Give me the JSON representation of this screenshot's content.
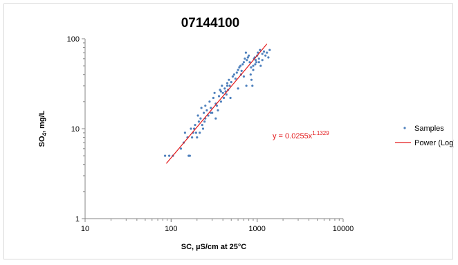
{
  "chart_data": {
    "type": "scatter",
    "title": "07144100",
    "xlabel": "SC, µS/cm at 25°C",
    "ylabel_main": "SO",
    "ylabel_sub": "4",
    "ylabel_tail": ", mg/L",
    "x_scale": "log",
    "y_scale": "log",
    "xlim": [
      10,
      10000
    ],
    "ylim": [
      1,
      100
    ],
    "x_ticks": [
      "10",
      "100",
      "1000",
      "10000"
    ],
    "y_ticks": [
      "1",
      "10",
      "100"
    ],
    "grid": false,
    "legend_position": "right",
    "colors": {
      "samples": "#4f81bd",
      "trend": "#e31a1c"
    },
    "series": [
      {
        "name": "Samples",
        "kind": "scatter",
        "points": [
          [
            85,
            5
          ],
          [
            95,
            5
          ],
          [
            105,
            5
          ],
          [
            130,
            6
          ],
          [
            140,
            7
          ],
          [
            145,
            9
          ],
          [
            155,
            8
          ],
          [
            160,
            5
          ],
          [
            165,
            5
          ],
          [
            170,
            10
          ],
          [
            175,
            8
          ],
          [
            180,
            9
          ],
          [
            185,
            10
          ],
          [
            190,
            11
          ],
          [
            195,
            9
          ],
          [
            200,
            8
          ],
          [
            205,
            14
          ],
          [
            210,
            12
          ],
          [
            215,
            9
          ],
          [
            220,
            13
          ],
          [
            225,
            17
          ],
          [
            230,
            11
          ],
          [
            235,
            10
          ],
          [
            240,
            15
          ],
          [
            245,
            12
          ],
          [
            250,
            18
          ],
          [
            260,
            16
          ],
          [
            270,
            14
          ],
          [
            280,
            20
          ],
          [
            290,
            17
          ],
          [
            300,
            15
          ],
          [
            310,
            22
          ],
          [
            320,
            25
          ],
          [
            330,
            13
          ],
          [
            340,
            18
          ],
          [
            350,
            16
          ],
          [
            360,
            23
          ],
          [
            370,
            27
          ],
          [
            380,
            20
          ],
          [
            390,
            30
          ],
          [
            400,
            25
          ],
          [
            410,
            22
          ],
          [
            420,
            28
          ],
          [
            430,
            26
          ],
          [
            440,
            24
          ],
          [
            450,
            32
          ],
          [
            460,
            27
          ],
          [
            470,
            35
          ],
          [
            480,
            30
          ],
          [
            490,
            22
          ],
          [
            500,
            33
          ],
          [
            520,
            38
          ],
          [
            540,
            40
          ],
          [
            560,
            36
          ],
          [
            580,
            42
          ],
          [
            600,
            45
          ],
          [
            620,
            48
          ],
          [
            640,
            50
          ],
          [
            660,
            44
          ],
          [
            680,
            52
          ],
          [
            700,
            55
          ],
          [
            720,
            60
          ],
          [
            740,
            70
          ],
          [
            760,
            58
          ],
          [
            780,
            62
          ],
          [
            800,
            65
          ],
          [
            820,
            55
          ],
          [
            840,
            40
          ],
          [
            860,
            35
          ],
          [
            880,
            30
          ],
          [
            900,
            50
          ],
          [
            920,
            60
          ],
          [
            940,
            62
          ],
          [
            960,
            58
          ],
          [
            980,
            55
          ],
          [
            1000,
            65
          ],
          [
            1020,
            70
          ],
          [
            1050,
            60
          ],
          [
            1080,
            75
          ],
          [
            1100,
            50
          ],
          [
            1150,
            68
          ],
          [
            1200,
            72
          ],
          [
            1250,
            65
          ],
          [
            1300,
            70
          ],
          [
            1350,
            62
          ],
          [
            1400,
            75
          ],
          [
            600,
            28
          ],
          [
            650,
            40
          ],
          [
            700,
            38
          ],
          [
            750,
            30
          ],
          [
            900,
            45
          ],
          [
            950,
            52
          ],
          [
            850,
            48
          ],
          [
            1050,
            55
          ],
          [
            1150,
            58
          ],
          [
            450,
            30
          ],
          [
            380,
            26
          ],
          [
            330,
            19
          ],
          [
            290,
            15
          ],
          [
            250,
            13
          ]
        ]
      },
      {
        "name": "Power (Log)",
        "kind": "line",
        "points": [
          [
            88,
            4.1
          ],
          [
            1300,
            87.6
          ]
        ]
      }
    ],
    "annotation": {
      "prefix": "y = 0.0255x",
      "exponent": "1.1329"
    }
  }
}
